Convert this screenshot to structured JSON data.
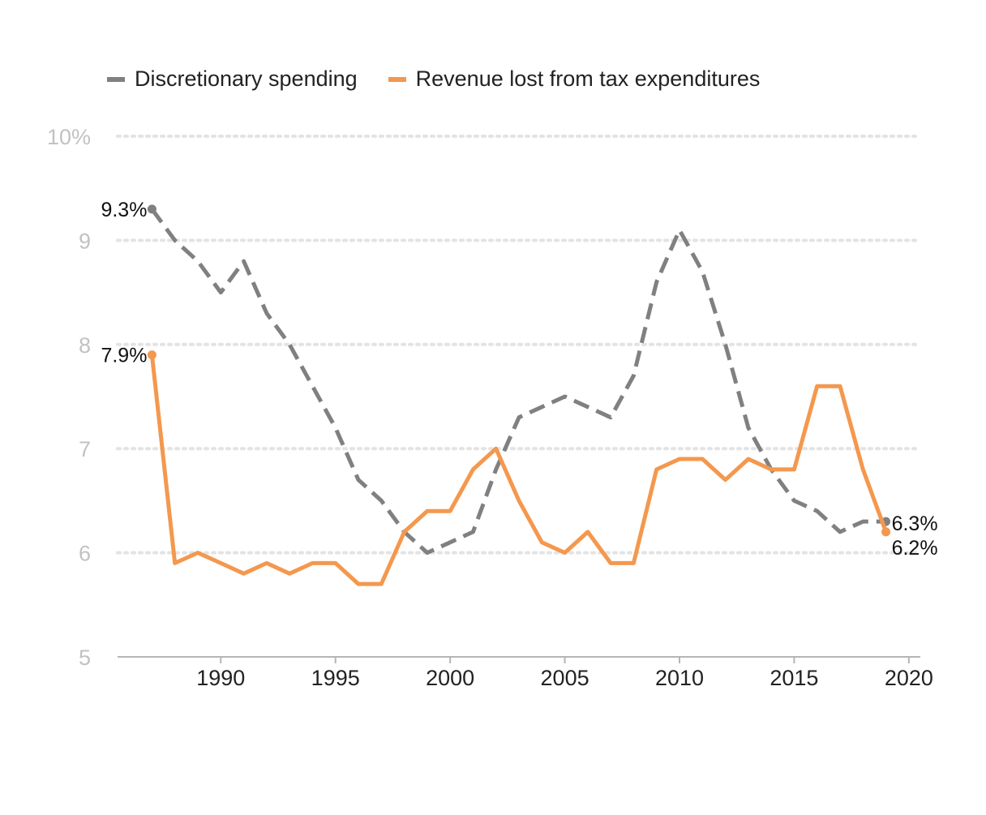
{
  "chart_data": {
    "type": "line",
    "title": "",
    "xlabel": "",
    "ylabel": "",
    "xlim": [
      1985.5,
      2020.5
    ],
    "ylim": [
      5,
      10
    ],
    "x_ticks": [
      1990,
      1995,
      2000,
      2005,
      2010,
      2015,
      2020
    ],
    "y_ticks": [
      {
        "value": 5,
        "label": "5"
      },
      {
        "value": 6,
        "label": "6"
      },
      {
        "value": 7,
        "label": "7"
      },
      {
        "value": 8,
        "label": "8"
      },
      {
        "value": 9,
        "label": "9"
      },
      {
        "value": 10,
        "label": "10%"
      }
    ],
    "grid": "horizontal dotted",
    "legend_position": "top",
    "x": [
      1987,
      1988,
      1989,
      1990,
      1991,
      1992,
      1993,
      1994,
      1995,
      1996,
      1997,
      1998,
      1999,
      2000,
      2001,
      2002,
      2003,
      2004,
      2005,
      2006,
      2007,
      2008,
      2009,
      2010,
      2011,
      2012,
      2013,
      2014,
      2015,
      2016,
      2017,
      2018,
      2019
    ],
    "series": [
      {
        "name": "Discretionary spending",
        "color": "#808080",
        "style": "dashed",
        "values": [
          9.3,
          9.0,
          8.8,
          8.5,
          8.8,
          8.3,
          8.0,
          7.6,
          7.2,
          6.7,
          6.5,
          6.2,
          6.0,
          6.1,
          6.2,
          6.8,
          7.3,
          7.4,
          7.5,
          7.4,
          7.3,
          7.7,
          8.6,
          9.1,
          8.7,
          8.0,
          7.2,
          6.8,
          6.5,
          6.4,
          6.2,
          6.3,
          6.3
        ],
        "start_label": "9.3%",
        "end_label": "6.3%"
      },
      {
        "name": "Revenue lost from tax expenditures",
        "color": "#f4984e",
        "style": "solid",
        "values": [
          7.9,
          5.9,
          6.0,
          5.9,
          5.8,
          5.9,
          5.8,
          5.9,
          5.9,
          5.7,
          5.7,
          6.2,
          6.4,
          6.4,
          6.8,
          7.0,
          6.5,
          6.1,
          6.0,
          6.2,
          5.9,
          5.9,
          6.8,
          6.9,
          6.9,
          6.7,
          6.9,
          6.8,
          6.8,
          7.6,
          7.6,
          6.8,
          6.2
        ],
        "start_label": "7.9%",
        "end_label": "6.2%"
      }
    ]
  }
}
